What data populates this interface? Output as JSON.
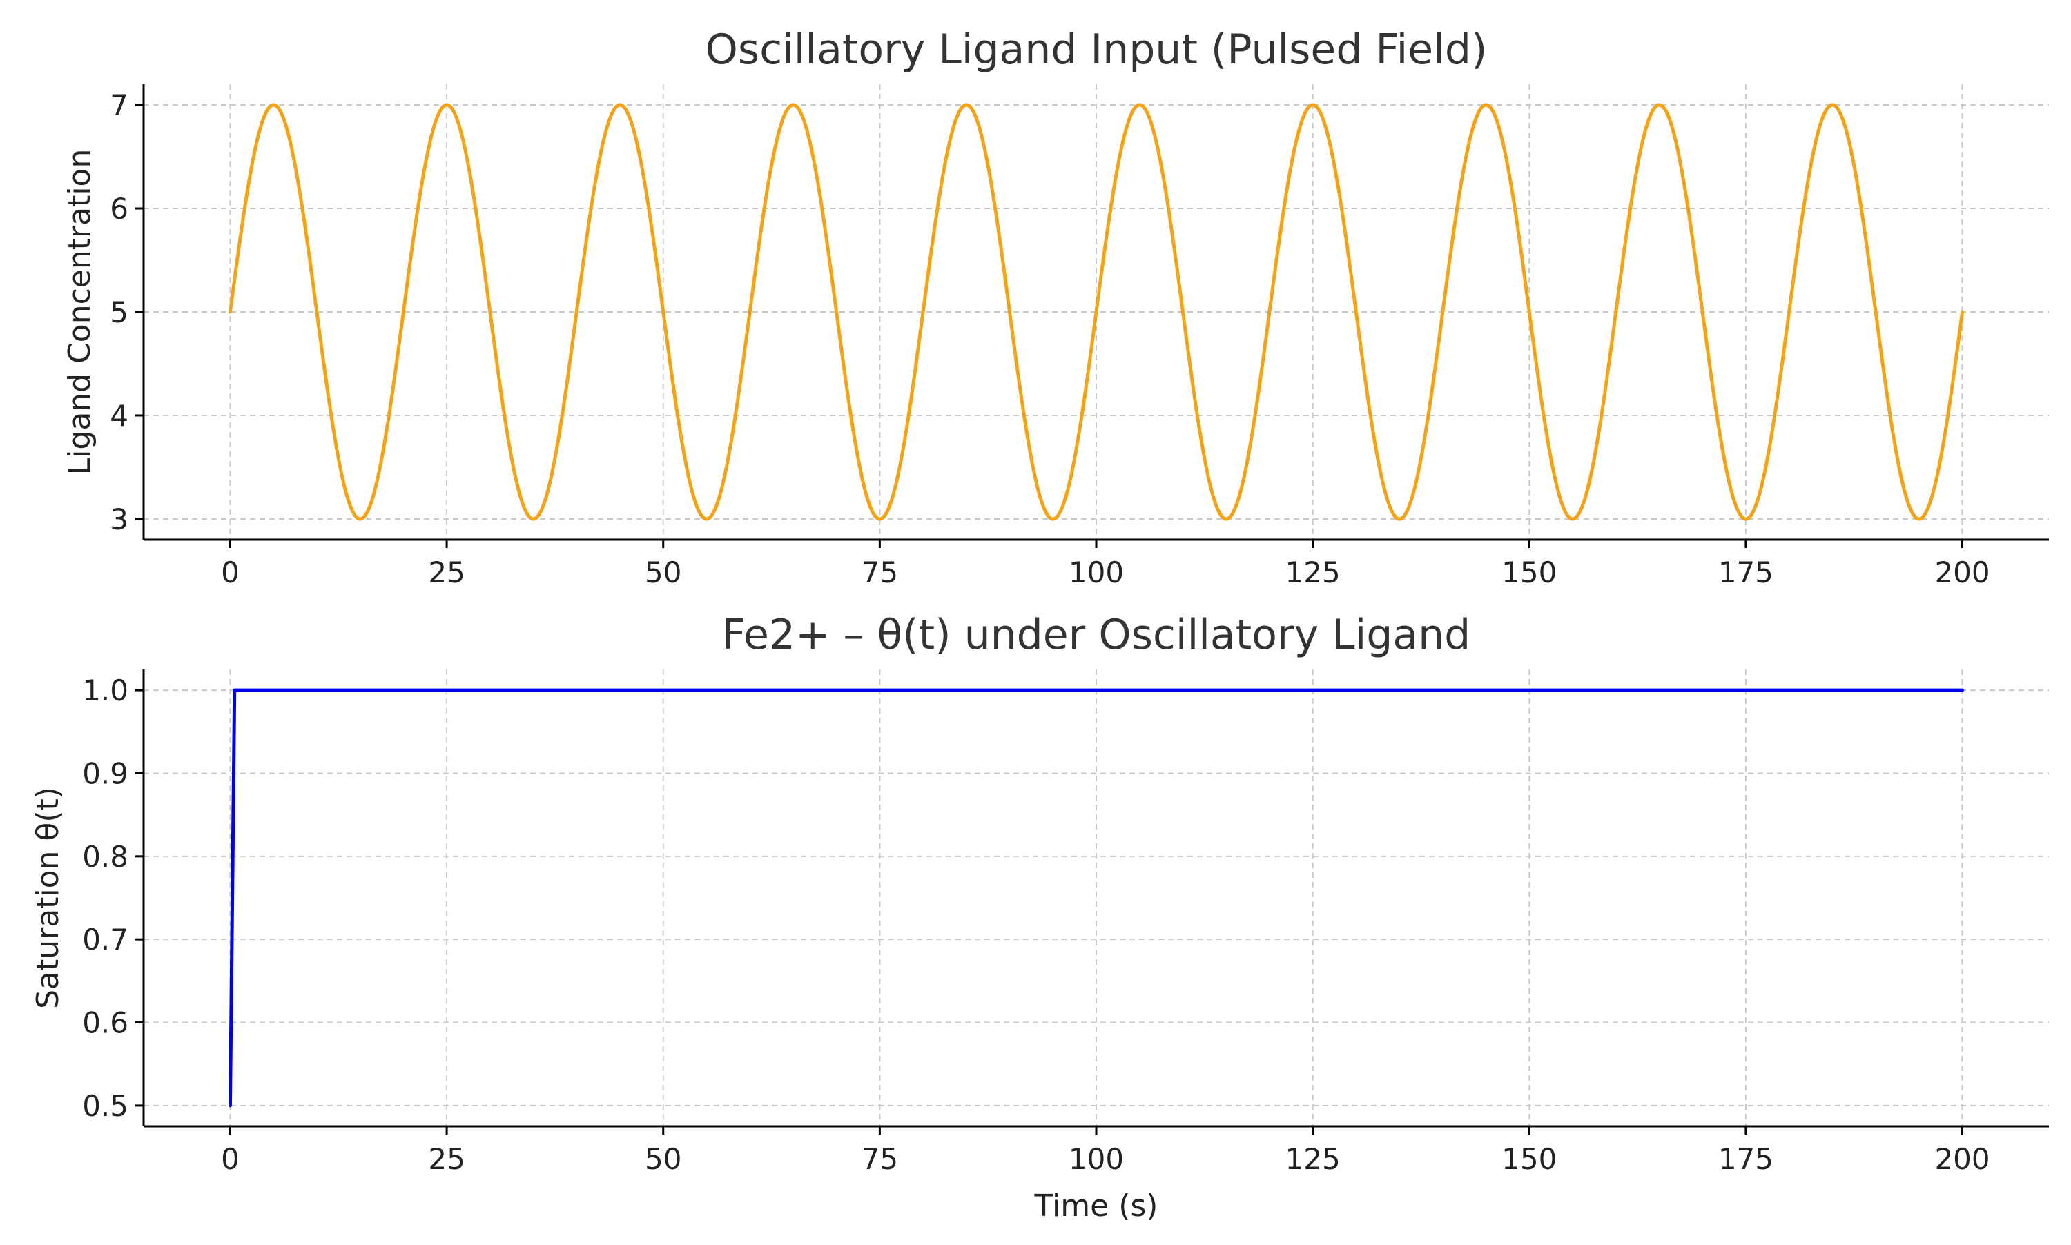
{
  "chart_data": [
    {
      "type": "line",
      "title": "Oscillatory Ligand Input (Pulsed Field)",
      "xlabel": "",
      "ylabel": "Ligand Concentration",
      "xlim": [
        -10,
        210
      ],
      "ylim": [
        2.8,
        7.2
      ],
      "xticks": [
        0,
        25,
        50,
        75,
        100,
        125,
        150,
        175,
        200
      ],
      "yticks": [
        3,
        4,
        5,
        6,
        7
      ],
      "xtick_labels": [
        "0",
        "25",
        "50",
        "75",
        "100",
        "125",
        "150",
        "175",
        "200"
      ],
      "ytick_labels": [
        "3",
        "4",
        "5",
        "6",
        "7"
      ],
      "grid": true,
      "grid_style": "dashed",
      "series": [
        {
          "color": "#f5a316",
          "function": "5 + 2*sin(2*pi*t/20)",
          "x_range": [
            0,
            200
          ],
          "x": [
            0,
            5,
            10,
            15,
            20,
            25,
            30,
            35,
            40,
            45,
            50,
            55,
            60,
            65,
            70,
            75,
            80,
            85,
            90,
            95,
            100,
            105,
            110,
            115,
            120,
            125,
            130,
            135,
            140,
            145,
            150,
            155,
            160,
            165,
            170,
            175,
            180,
            185,
            190,
            195,
            200
          ],
          "values": [
            5,
            7,
            5,
            3,
            5,
            7,
            5,
            3,
            5,
            7,
            5,
            3,
            5,
            7,
            5,
            3,
            5,
            7,
            5,
            3,
            5,
            7,
            5,
            3,
            5,
            7,
            5,
            3,
            5,
            7,
            5,
            3,
            5,
            7,
            5,
            3,
            5,
            7,
            5,
            3,
            5
          ]
        }
      ]
    },
    {
      "type": "line",
      "title": "Fe2+ – θ(t) under Oscillatory Ligand",
      "xlabel": "Time (s)",
      "ylabel": "Saturation θ(t)",
      "xlim": [
        -10,
        210
      ],
      "ylim": [
        0.475,
        1.025
      ],
      "xticks": [
        0,
        25,
        50,
        75,
        100,
        125,
        150,
        175,
        200
      ],
      "yticks": [
        0.5,
        0.6,
        0.7,
        0.8,
        0.9,
        1.0
      ],
      "xtick_labels": [
        "0",
        "25",
        "50",
        "75",
        "100",
        "125",
        "150",
        "175",
        "200"
      ],
      "ytick_labels": [
        "0.5",
        "0.6",
        "0.7",
        "0.8",
        "0.9",
        "1.0"
      ],
      "grid": true,
      "grid_style": "dashed",
      "series": [
        {
          "color": "#0000ee",
          "x": [
            0,
            0.5,
            25,
            50,
            75,
            100,
            125,
            150,
            175,
            200
          ],
          "values": [
            0.5,
            1.0,
            1.0,
            1.0,
            1.0,
            1.0,
            1.0,
            1.0,
            1.0,
            1.0
          ]
        }
      ]
    }
  ]
}
